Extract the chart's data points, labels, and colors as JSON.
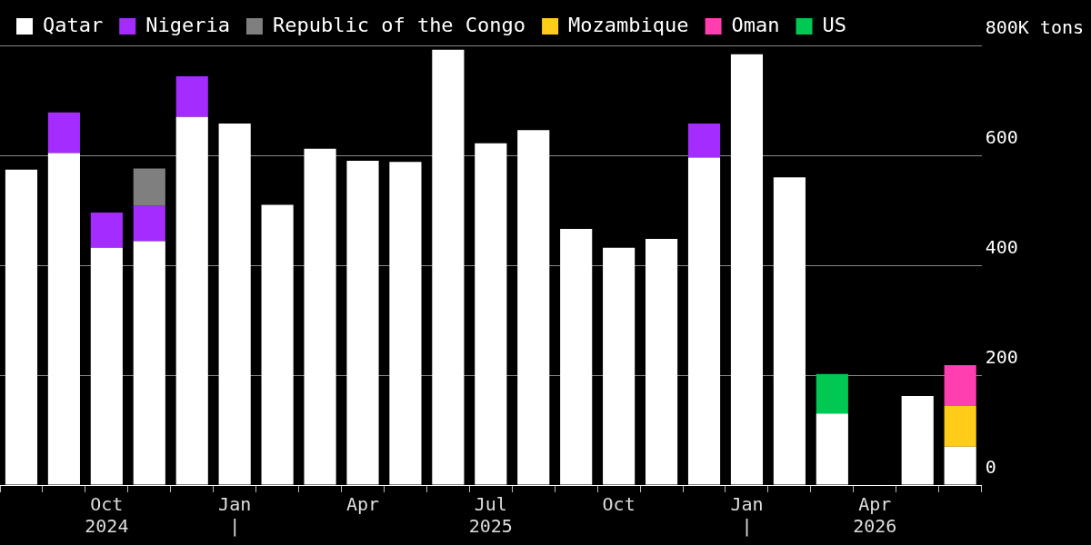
{
  "chart_data": {
    "type": "bar",
    "stacked": true,
    "categories": [
      null,
      null,
      "Oct\n2024",
      null,
      null,
      "Jan\n|",
      null,
      null,
      "Apr",
      null,
      null,
      "Jul\n2025",
      null,
      null,
      "Oct",
      null,
      null,
      "Jan\n|",
      null,
      null,
      "Apr\n2026",
      null,
      null
    ],
    "series": [
      {
        "name": "Qatar",
        "color": "#ffffff",
        "values": [
          574,
          604,
          432,
          444,
          670,
          658,
          510,
          612,
          590,
          588,
          792,
          622,
          646,
          466,
          432,
          448,
          596,
          784,
          560,
          130,
          0,
          162,
          70
        ]
      },
      {
        "name": "Nigeria",
        "color": "#a52cff",
        "values": [
          null,
          74,
          64,
          64,
          74,
          null,
          null,
          null,
          null,
          null,
          null,
          null,
          null,
          null,
          null,
          null,
          62,
          null,
          null,
          null,
          null,
          null,
          null
        ]
      },
      {
        "name": "Republic of the Congo",
        "color": "#7f7f7f",
        "values": [
          null,
          null,
          null,
          68,
          null,
          null,
          null,
          null,
          null,
          null,
          null,
          null,
          null,
          null,
          null,
          null,
          null,
          null,
          null,
          null,
          null,
          null,
          null
        ]
      },
      {
        "name": "Mozambique",
        "color": "#ffcc1a",
        "values": [
          null,
          null,
          null,
          null,
          null,
          null,
          null,
          null,
          null,
          null,
          null,
          null,
          null,
          null,
          null,
          null,
          null,
          null,
          null,
          null,
          null,
          null,
          74
        ]
      },
      {
        "name": "Oman",
        "color": "#ff3fb0",
        "values": [
          null,
          null,
          null,
          null,
          null,
          null,
          null,
          null,
          null,
          null,
          null,
          null,
          null,
          null,
          null,
          null,
          null,
          null,
          null,
          null,
          null,
          null,
          74
        ]
      },
      {
        "name": "US",
        "color": "#00c853",
        "values": [
          null,
          null,
          null,
          null,
          null,
          null,
          null,
          null,
          null,
          null,
          null,
          null,
          null,
          null,
          null,
          null,
          null,
          null,
          null,
          72,
          null,
          null,
          null
        ]
      }
    ],
    "ylim": [
      0,
      800
    ],
    "yticks": [
      0,
      200,
      400,
      600,
      {
        "value": 800,
        "label": "800K tons"
      }
    ],
    "grid": "y",
    "legend": "top left"
  }
}
